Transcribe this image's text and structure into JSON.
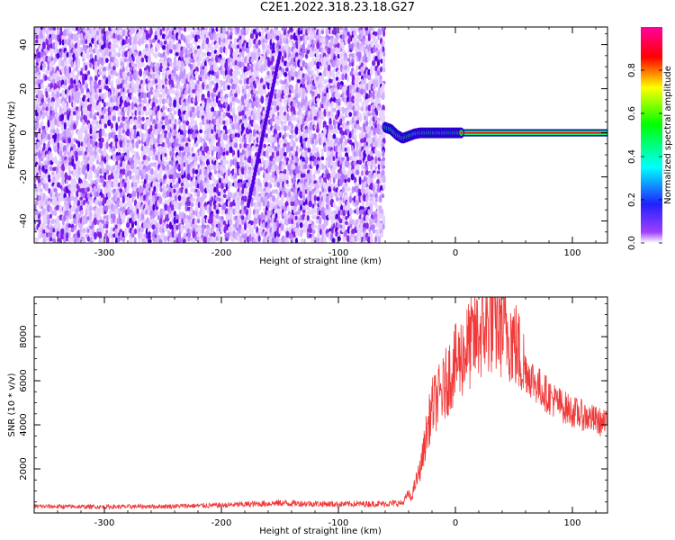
{
  "figure_title": "C2E1.2022.318.23.18.G27",
  "colors": {
    "snr_line": "#f03a3a",
    "spectrogram_low": "#e6d0ff",
    "spectrogram_mid": "#8a2be2",
    "spectrogram_high": "#5200e0",
    "axes": "#000000"
  },
  "chart_data": [
    {
      "type": "heatmap",
      "title": "",
      "xlabel": "Height of straight line (km)",
      "ylabel": "Frequency (Hz)",
      "xlim": [
        -360,
        130
      ],
      "ylim": [
        -50,
        48
      ],
      "x_ticks": [
        -300,
        -200,
        -100,
        0,
        100
      ],
      "x_tick_labels": [
        "-300",
        "-200",
        "-100",
        "0",
        "100"
      ],
      "y_ticks": [
        -40,
        -20,
        0,
        20,
        40
      ],
      "y_tick_labels": [
        "-40",
        "-20",
        "0",
        "20",
        "40"
      ],
      "noise_region_x": [
        -360,
        -60
      ],
      "signal_trace": {
        "x": [
          -60,
          -55,
          -50,
          -45,
          -40,
          -35,
          -30,
          -25,
          -20,
          -15,
          -10,
          -5,
          0,
          5,
          50,
          130
        ],
        "frequency": [
          2.5,
          1.5,
          -1,
          -2.5,
          -1.5,
          -0.5,
          0,
          0,
          0,
          0,
          0,
          0,
          0,
          0,
          0,
          0
        ]
      },
      "grid": false,
      "colorbar": {
        "label": "Normalized spectral amplitude",
        "range": [
          0,
          1
        ],
        "ticks": [
          0.0,
          0.2,
          0.4,
          0.6,
          0.8
        ],
        "tick_labels": [
          "0.0",
          "0.2",
          "0.4",
          "0.6",
          "0.8"
        ],
        "stops": [
          "#ffffff",
          "#a040ff",
          "#2020ff",
          "#00ffff",
          "#00ff00",
          "#ffff00",
          "#ff0000",
          "#ff00a0"
        ]
      }
    },
    {
      "type": "line",
      "title": "",
      "xlabel": "Height of straight line (km)",
      "ylabel": "SNR (10 * v/v)",
      "xlim": [
        -360,
        130
      ],
      "ylim": [
        0,
        9800
      ],
      "x_ticks": [
        -300,
        -200,
        -100,
        0,
        100
      ],
      "x_tick_labels": [
        "-300",
        "-200",
        "-100",
        "0",
        "100"
      ],
      "y_ticks": [
        2000,
        4000,
        6000,
        8000
      ],
      "y_tick_labels": [
        "2000",
        "4000",
        "6000",
        "8000"
      ],
      "grid": false,
      "series": [
        {
          "x": [
            -360,
            -300,
            -250,
            -200,
            -150,
            -100,
            -60,
            -45,
            -40,
            -38,
            -35,
            -30,
            -25,
            -20,
            -15,
            -10,
            -5,
            0,
            5,
            10,
            15,
            20,
            25,
            30,
            35,
            40,
            45,
            50,
            55,
            60,
            70,
            80,
            90,
            100,
            110,
            120,
            130
          ],
          "values": [
            300,
            280,
            300,
            350,
            450,
            400,
            420,
            450,
            900,
            600,
            1200,
            2000,
            3500,
            4800,
            5200,
            5600,
            6300,
            6700,
            7100,
            7500,
            7800,
            8100,
            8400,
            8600,
            8500,
            8400,
            8200,
            7800,
            7200,
            6500,
            5800,
            5300,
            4900,
            4600,
            4400,
            4200,
            4000
          ]
        }
      ]
    }
  ]
}
